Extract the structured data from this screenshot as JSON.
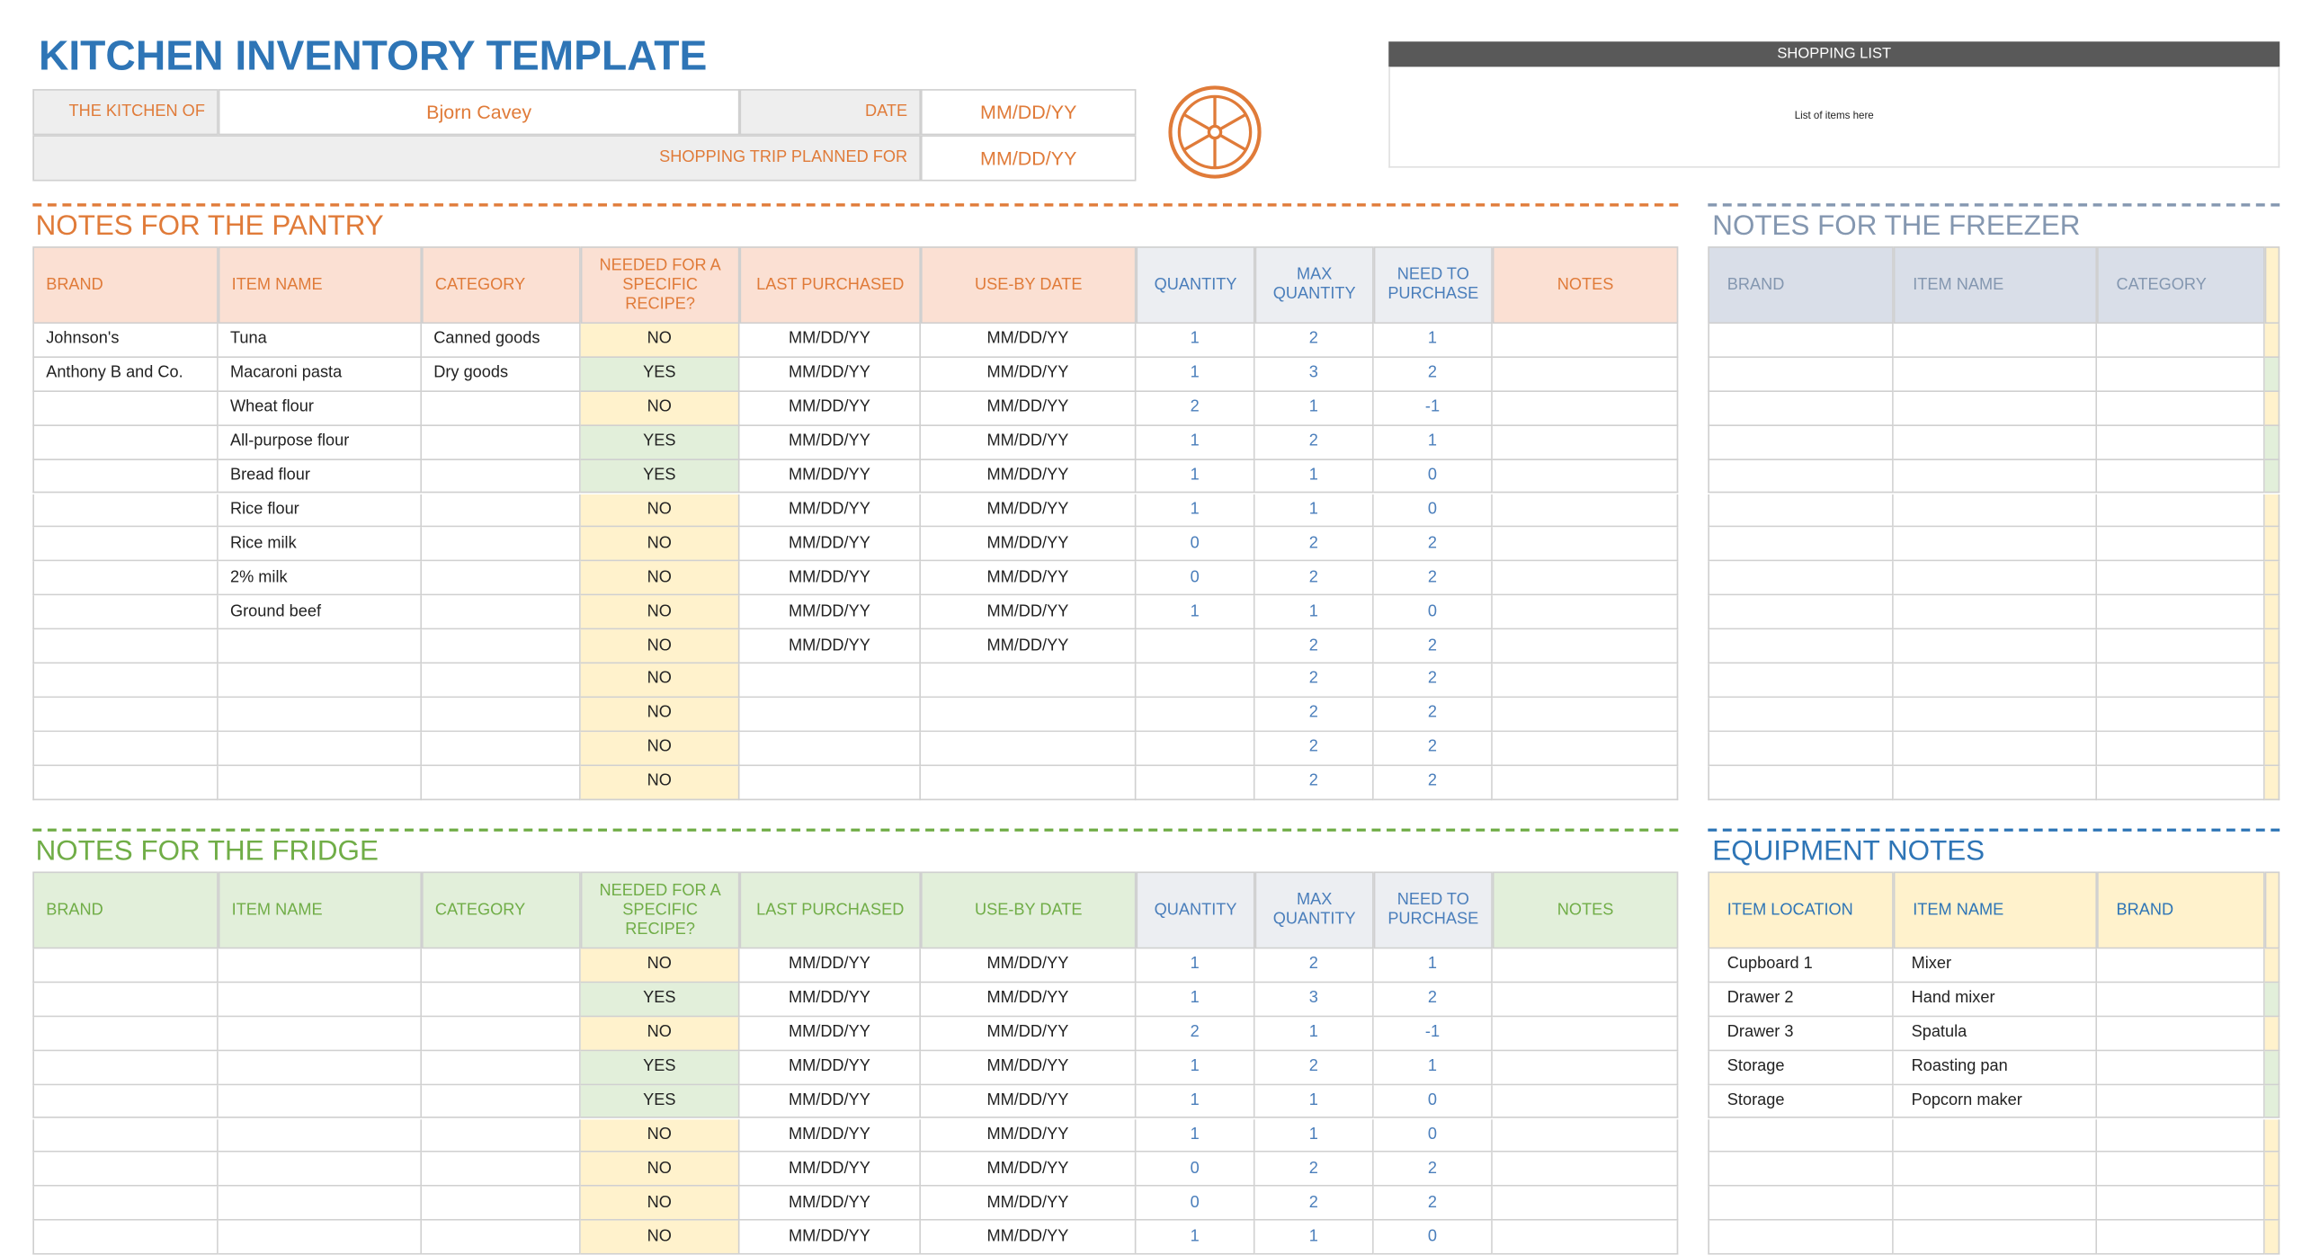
{
  "header": {
    "title": "KITCHEN INVENTORY TEMPLATE",
    "kitchen_of_label": "THE KITCHEN OF",
    "kitchen_of": "Bjorn Cavey",
    "date_label": "DATE",
    "date": "MM/DD/YY",
    "trip_label": "SHOPPING TRIP PLANNED FOR",
    "trip_date": "MM/DD/YY"
  },
  "shopping_list": {
    "title": "SHOPPING LIST",
    "placeholder": "List of items here"
  },
  "pantry": {
    "title": "NOTES FOR THE PANTRY",
    "columns": [
      "BRAND",
      "ITEM NAME",
      "CATEGORY",
      "NEEDED FOR A SPECIFIC RECIPE?",
      "LAST PURCHASED",
      "USE-BY DATE",
      "QUANTITY",
      "MAX QUANTITY",
      "NEED TO PURCHASE",
      "NOTES"
    ],
    "rows": [
      {
        "brand": "Johnson's",
        "item": "Tuna",
        "category": "Canned goods",
        "needed": "NO",
        "last_purchased": "MM/DD/YY",
        "use_by": "MM/DD/YY",
        "quantity": 1,
        "max_quantity": 2,
        "need_to_purchase": 1
      },
      {
        "brand": "Anthony B and Co.",
        "item": "Macaroni pasta",
        "category": "Dry goods",
        "needed": "YES",
        "last_purchased": "MM/DD/YY",
        "use_by": "MM/DD/YY",
        "quantity": 1,
        "max_quantity": 3,
        "need_to_purchase": 2
      },
      {
        "item": "Wheat flour",
        "needed": "NO",
        "last_purchased": "MM/DD/YY",
        "use_by": "MM/DD/YY",
        "quantity": 2,
        "max_quantity": 1,
        "need_to_purchase": -1
      },
      {
        "item": "All-purpose flour",
        "needed": "YES",
        "last_purchased": "MM/DD/YY",
        "use_by": "MM/DD/YY",
        "quantity": 1,
        "max_quantity": 2,
        "need_to_purchase": 1
      },
      {
        "item": "Bread flour",
        "needed": "YES",
        "last_purchased": "MM/DD/YY",
        "use_by": "MM/DD/YY",
        "quantity": 1,
        "max_quantity": 1,
        "need_to_purchase": 0
      },
      {
        "item": "Rice flour",
        "needed": "NO",
        "last_purchased": "MM/DD/YY",
        "use_by": "MM/DD/YY",
        "quantity": 1,
        "max_quantity": 1,
        "need_to_purchase": 0
      },
      {
        "item": "Rice milk",
        "needed": "NO",
        "last_purchased": "MM/DD/YY",
        "use_by": "MM/DD/YY",
        "quantity": 0,
        "max_quantity": 2,
        "need_to_purchase": 2
      },
      {
        "item": "2% milk",
        "needed": "NO",
        "last_purchased": "MM/DD/YY",
        "use_by": "MM/DD/YY",
        "quantity": 0,
        "max_quantity": 2,
        "need_to_purchase": 2
      },
      {
        "item": "Ground beef",
        "needed": "NO",
        "last_purchased": "MM/DD/YY",
        "use_by": "MM/DD/YY",
        "quantity": 1,
        "max_quantity": 1,
        "need_to_purchase": 0
      },
      {
        "needed": "NO",
        "last_purchased": "MM/DD/YY",
        "use_by": "MM/DD/YY",
        "max_quantity": 2,
        "need_to_purchase": 2
      },
      {
        "needed": "NO",
        "max_quantity": 2,
        "need_to_purchase": 2
      },
      {
        "needed": "NO",
        "max_quantity": 2,
        "need_to_purchase": 2
      },
      {
        "needed": "NO",
        "max_quantity": 2,
        "need_to_purchase": 2
      },
      {
        "needed": "NO",
        "max_quantity": 2,
        "need_to_purchase": 2
      }
    ]
  },
  "fridge": {
    "title": "NOTES FOR THE FRIDGE",
    "columns": [
      "BRAND",
      "ITEM NAME",
      "CATEGORY",
      "NEEDED FOR A SPECIFIC RECIPE?",
      "LAST PURCHASED",
      "USE-BY DATE",
      "QUANTITY",
      "MAX QUANTITY",
      "NEED TO PURCHASE",
      "NOTES"
    ],
    "rows": [
      {
        "needed": "NO",
        "last_purchased": "MM/DD/YY",
        "use_by": "MM/DD/YY",
        "quantity": 1,
        "max_quantity": 2,
        "need_to_purchase": 1
      },
      {
        "needed": "YES",
        "last_purchased": "MM/DD/YY",
        "use_by": "MM/DD/YY",
        "quantity": 1,
        "max_quantity": 3,
        "need_to_purchase": 2
      },
      {
        "needed": "NO",
        "last_purchased": "MM/DD/YY",
        "use_by": "MM/DD/YY",
        "quantity": 2,
        "max_quantity": 1,
        "need_to_purchase": -1
      },
      {
        "needed": "YES",
        "last_purchased": "MM/DD/YY",
        "use_by": "MM/DD/YY",
        "quantity": 1,
        "max_quantity": 2,
        "need_to_purchase": 1
      },
      {
        "needed": "YES",
        "last_purchased": "MM/DD/YY",
        "use_by": "MM/DD/YY",
        "quantity": 1,
        "max_quantity": 1,
        "need_to_purchase": 0
      },
      {
        "needed": "NO",
        "last_purchased": "MM/DD/YY",
        "use_by": "MM/DD/YY",
        "quantity": 1,
        "max_quantity": 1,
        "need_to_purchase": 0
      },
      {
        "needed": "NO",
        "last_purchased": "MM/DD/YY",
        "use_by": "MM/DD/YY",
        "quantity": 0,
        "max_quantity": 2,
        "need_to_purchase": 2
      },
      {
        "needed": "NO",
        "last_purchased": "MM/DD/YY",
        "use_by": "MM/DD/YY",
        "quantity": 0,
        "max_quantity": 2,
        "need_to_purchase": 2
      },
      {
        "needed": "NO",
        "last_purchased": "MM/DD/YY",
        "use_by": "MM/DD/YY",
        "quantity": 1,
        "max_quantity": 1,
        "need_to_purchase": 0
      }
    ]
  },
  "freezer": {
    "title": "NOTES FOR THE FREEZER",
    "columns": [
      "BRAND",
      "ITEM NAME",
      "CATEGORY"
    ]
  },
  "equipment": {
    "title": "EQUIPMENT NOTES",
    "columns": [
      "ITEM LOCATION",
      "ITEM NAME",
      "BRAND"
    ],
    "rows": [
      {
        "location": "Cupboard 1",
        "item": "Mixer"
      },
      {
        "location": "Drawer 2",
        "item": "Hand mixer"
      },
      {
        "location": "Drawer 3",
        "item": "Spatula"
      },
      {
        "location": "Storage",
        "item": "Roasting pan"
      },
      {
        "location": "Storage",
        "item": "Popcorn maker"
      }
    ]
  }
}
